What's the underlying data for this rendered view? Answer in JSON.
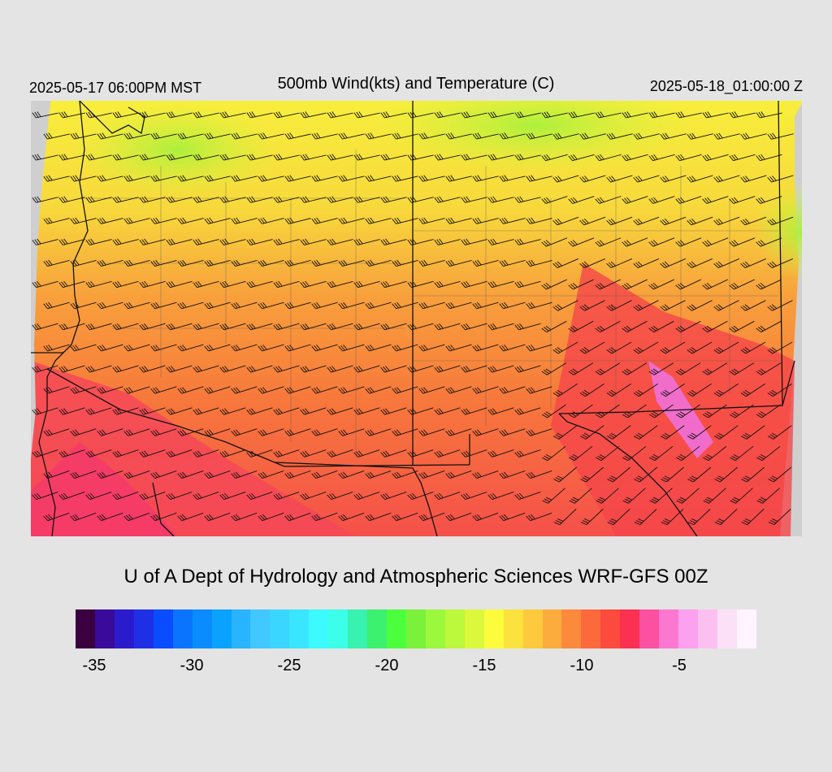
{
  "header": {
    "local_time": "2025-05-17 06:00PM MST",
    "title": "500mb Wind(kts) and Temperature (C)",
    "utc_time": "2025-05-18_01:00:00 Z"
  },
  "credit": "U of A Dept of Hydrology and Atmospheric Sciences WRF-GFS 00Z",
  "colorbar": {
    "colors": [
      "#3b0040",
      "#3a0a9a",
      "#2a1ccc",
      "#1f2fe6",
      "#0a4cff",
      "#0a74ff",
      "#0a8cff",
      "#0aa2ff",
      "#28b4ff",
      "#40c8ff",
      "#3ad6ff",
      "#3ae6ff",
      "#3cfaff",
      "#3cffea",
      "#38f2b0",
      "#3cf070",
      "#4cff3c",
      "#7af23c",
      "#9cf83c",
      "#bcf83c",
      "#dcf83c",
      "#fcfc3c",
      "#fce23c",
      "#fcca3c",
      "#fcac3c",
      "#fc8a3c",
      "#fc6a3c",
      "#fc4a3c",
      "#fc3050",
      "#fc50a0",
      "#fc78d0",
      "#fca0f0",
      "#fcc0f0",
      "#fce0f8",
      "#fff4ff"
    ],
    "tick_labels": [
      "-35",
      "-30",
      "-25",
      "-20",
      "-15",
      "-10",
      "-5"
    ]
  },
  "legend_palette": {
    "land_gray": "#cfcfcf",
    "warm_red": "#f04450",
    "orange": "#f68a3a",
    "yellow": "#f8ee3c",
    "green": "#bcf43c",
    "pink": "#f070e0"
  }
}
